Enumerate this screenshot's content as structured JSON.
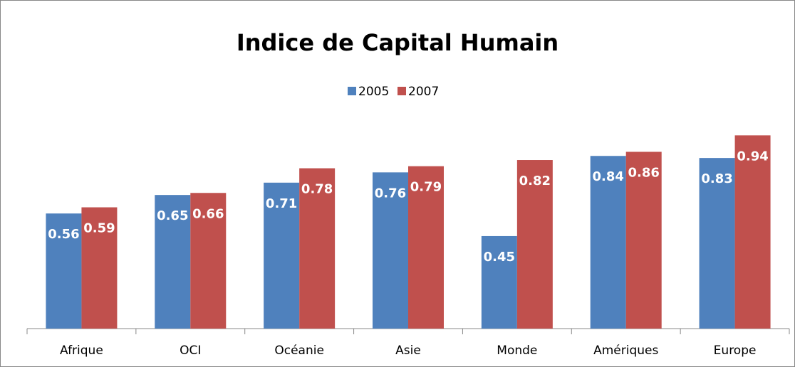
{
  "chart_data": {
    "type": "bar",
    "title": "Indice de Capital Humain",
    "categories": [
      "Afrique",
      "OCI",
      "Océanie",
      "Asie",
      "Monde",
      "Amériques",
      "Europe"
    ],
    "series": [
      {
        "name": "2005",
        "color": "#4f81bd",
        "values": [
          0.56,
          0.65,
          0.71,
          0.76,
          0.45,
          0.84,
          0.83
        ]
      },
      {
        "name": "2007",
        "color": "#c0504d",
        "values": [
          0.59,
          0.66,
          0.78,
          0.79,
          0.82,
          0.86,
          0.94
        ]
      }
    ],
    "ylim": [
      0,
      1
    ],
    "legend": "top"
  }
}
